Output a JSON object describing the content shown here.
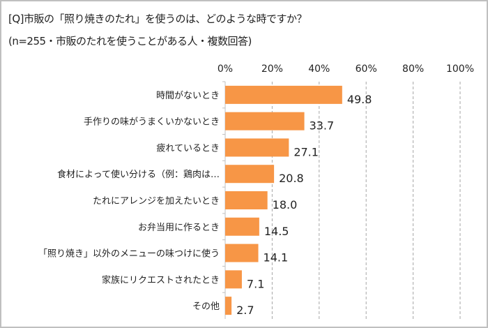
{
  "chart_data": {
    "type": "bar",
    "orientation": "horizontal",
    "title": "[Q]市販の「照り焼きのたれ」を使うのは、どのような時ですか？",
    "subtitle": "(n=255・市販のたれを使うことがある人・複数回答)",
    "categories": [
      "時間がないとき",
      "手作りの味がうまくいかないとき",
      "疲れているとき",
      "食材によって使い分ける（例：鶏肉は…",
      "たれにアレンジを加えたいとき",
      "お弁当用に作るとき",
      "「照り焼き」以外のメニューの味つけに使う",
      "家族にリクエストされたとき",
      "その他"
    ],
    "values": [
      49.8,
      33.7,
      27.1,
      20.8,
      18.0,
      14.5,
      14.1,
      7.1,
      2.7
    ],
    "value_labels": [
      "49.8",
      "33.7",
      "27.1",
      "20.8",
      "18.0",
      "14.5",
      "14.1",
      "7.1",
      "2.7"
    ],
    "xlim": [
      0,
      100
    ],
    "xticks": [
      "0%",
      "20%",
      "40%",
      "60%",
      "80%",
      "100%"
    ],
    "grid": true,
    "bar_color": "#F79646"
  }
}
